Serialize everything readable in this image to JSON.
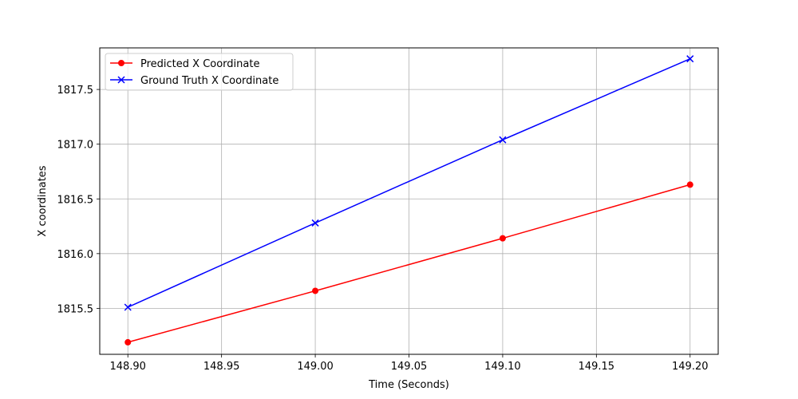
{
  "chart_data": {
    "type": "line",
    "title": "",
    "xlabel": "Time (Seconds)",
    "ylabel": "X coordinates",
    "xlim": [
      148.885,
      149.215
    ],
    "ylim": [
      1815.08,
      1817.88
    ],
    "x_ticks": [
      "148.90",
      "148.95",
      "149.00",
      "149.05",
      "149.10",
      "149.15",
      "149.20"
    ],
    "y_ticks": [
      "1815.5",
      "1816.0",
      "1816.5",
      "1817.0",
      "1817.5"
    ],
    "grid": true,
    "legend_position": "upper-left",
    "series": [
      {
        "name": "Predicted X Coordinate",
        "color": "#ff0000",
        "marker": "circle",
        "x": [
          148.9,
          149.0,
          149.1,
          149.2
        ],
        "y": [
          1815.19,
          1815.66,
          1816.14,
          1816.63
        ]
      },
      {
        "name": "Ground Truth X Coordinate",
        "color": "#0000ff",
        "marker": "x",
        "x": [
          148.9,
          149.0,
          149.1,
          149.2
        ],
        "y": [
          1815.51,
          1816.28,
          1817.04,
          1817.78
        ]
      }
    ]
  }
}
